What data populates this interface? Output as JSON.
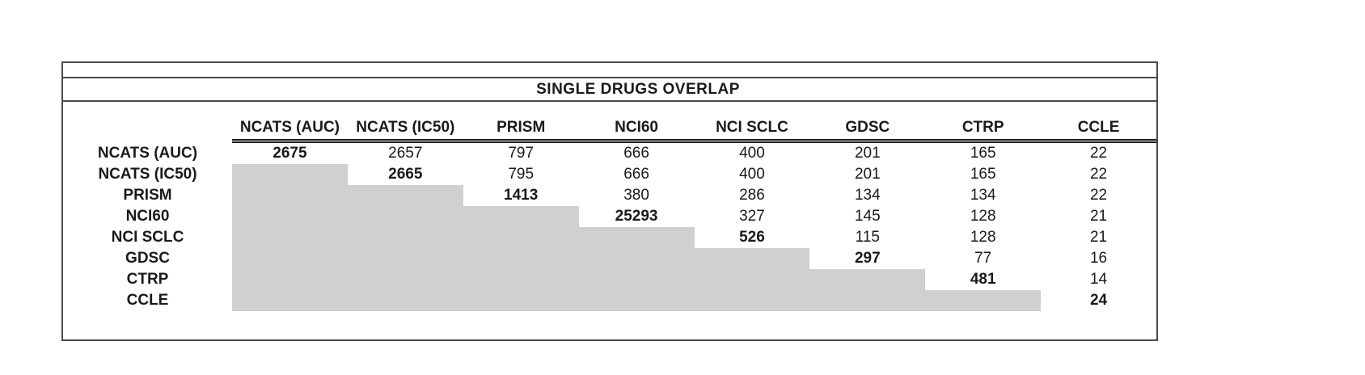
{
  "chart_data": {
    "type": "table",
    "title": "SINGLE DRUGS OVERLAP",
    "columns": [
      "NCATS (AUC)",
      "NCATS (IC50)",
      "PRISM",
      "NCI60",
      "NCI SCLC",
      "GDSC",
      "CTRP",
      "CCLE"
    ],
    "rows": [
      {
        "label": "NCATS (AUC)",
        "cells": [
          "2675",
          "2657",
          "797",
          "666",
          "400",
          "201",
          "165",
          "22"
        ]
      },
      {
        "label": "NCATS (IC50)",
        "cells": [
          null,
          "2665",
          "795",
          "666",
          "400",
          "201",
          "165",
          "22"
        ]
      },
      {
        "label": "PRISM",
        "cells": [
          null,
          null,
          "1413",
          "380",
          "286",
          "134",
          "134",
          "22"
        ]
      },
      {
        "label": "NCI60",
        "cells": [
          null,
          null,
          null,
          "25293",
          "327",
          "145",
          "128",
          "21"
        ]
      },
      {
        "label": "NCI SCLC",
        "cells": [
          null,
          null,
          null,
          null,
          "526",
          "115",
          "128",
          "21"
        ]
      },
      {
        "label": "GDSC",
        "cells": [
          null,
          null,
          null,
          null,
          null,
          "297",
          "77",
          "16"
        ]
      },
      {
        "label": "CTRP",
        "cells": [
          null,
          null,
          null,
          null,
          null,
          null,
          "481",
          "14"
        ]
      },
      {
        "label": "CCLE",
        "cells": [
          null,
          null,
          null,
          null,
          null,
          null,
          null,
          "24"
        ]
      }
    ],
    "layout_notes": "upper-triangular matrix; diagonal values bold; cells below diagonal shaded gray with no values; double rule under column headers"
  },
  "colors": {
    "shaded_cell": "#d0d0d0",
    "border": "#4a4a4a",
    "text": "#1a1a1a"
  }
}
